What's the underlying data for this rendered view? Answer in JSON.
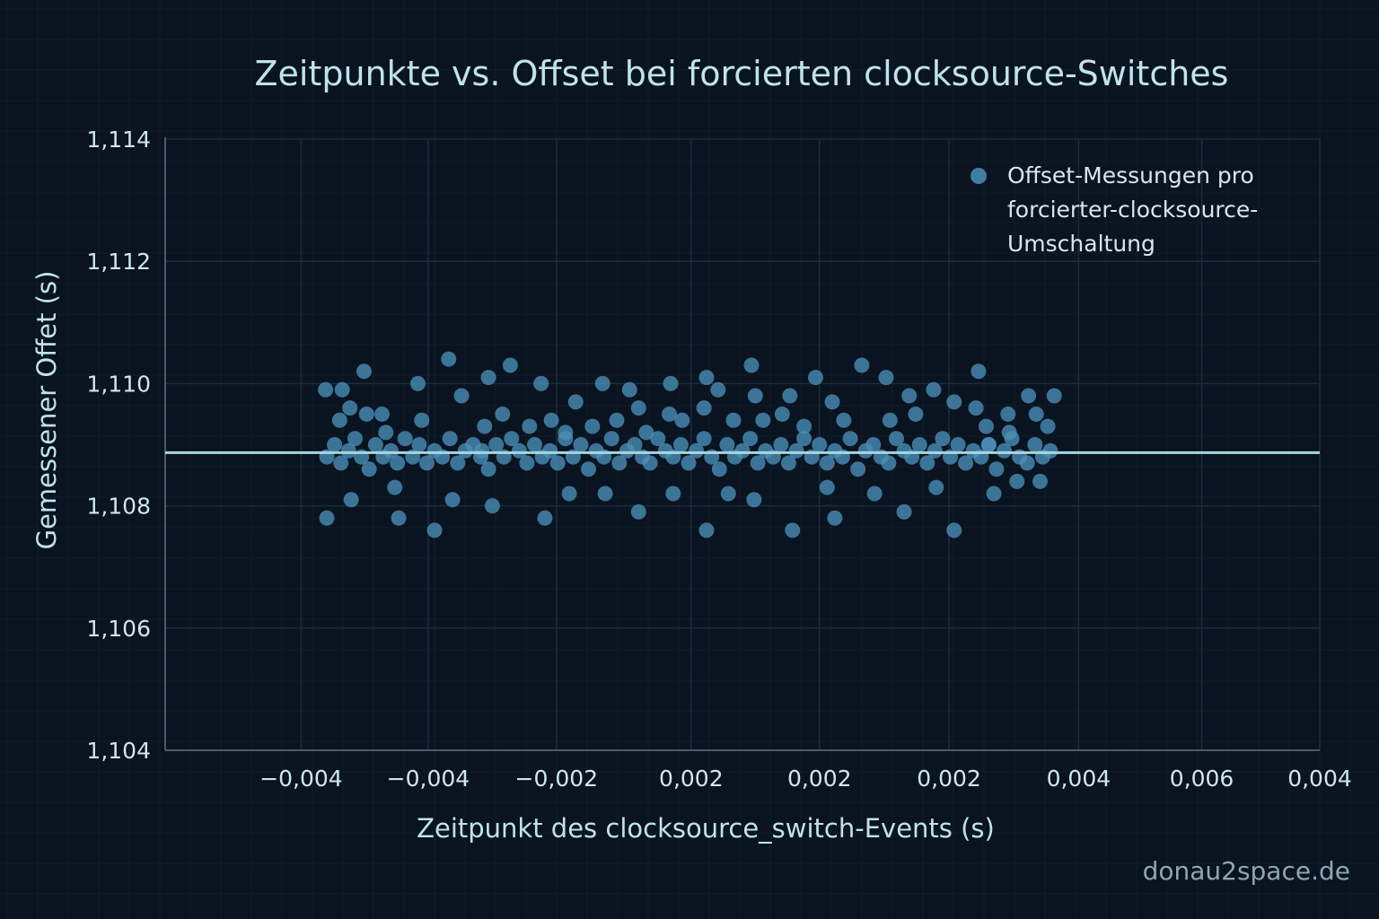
{
  "colors": {
    "background": "#0a1320",
    "point": "#4a90b8",
    "mean_line": "#a9d6df",
    "axis": "#4b5d6b",
    "grid": "#1a2a38"
  },
  "watermark": "donau2space.de",
  "chart_data": {
    "type": "scatter",
    "title": "Zeitpunkte vs. Offset bei forcierten clocksource-Switches",
    "xlabel": "Zeitpunkt des clocksource_switch-Events (s)",
    "ylabel": "Gemessener Offet (s)",
    "x_units_note": "x values given in tick-index units (tick 1..9)",
    "xlim": [
      0,
      9
    ],
    "ylim": [
      1.104,
      1.114
    ],
    "grid": true,
    "legend_position": "top-right",
    "xticks": [
      {
        "pos": 1.06,
        "label": "−0,004"
      },
      {
        "pos": 2.05,
        "label": "−0,004"
      },
      {
        "pos": 3.05,
        "label": "−0,002"
      },
      {
        "pos": 4.1,
        "label": "0,002"
      },
      {
        "pos": 5.1,
        "label": "0,002"
      },
      {
        "pos": 6.11,
        "label": "0,002"
      },
      {
        "pos": 7.12,
        "label": "0,004"
      },
      {
        "pos": 8.08,
        "label": "0,006"
      },
      {
        "pos": 9.0,
        "label": "0,004"
      }
    ],
    "yticks": [
      {
        "value": 1.114,
        "label": "1,114"
      },
      {
        "value": 1.112,
        "label": "1,112"
      },
      {
        "value": 1.11,
        "label": "1,110"
      },
      {
        "value": 1.108,
        "label": "1,108"
      },
      {
        "value": 1.106,
        "label": "1,106"
      },
      {
        "value": 1.104,
        "label": "1,104"
      }
    ],
    "series": [
      {
        "name": "Offset-Messungen pro forcierter-clocksource-Umschaltung",
        "legend_lines": [
          "Offset-Messungen pro",
          "forcierter-clocksource-",
          "Umschaltung"
        ],
        "points": [
          [
            1.25,
            1.1099
          ],
          [
            1.38,
            1.1099
          ],
          [
            1.55,
            1.1102
          ],
          [
            1.44,
            1.1096
          ],
          [
            1.57,
            1.1095
          ],
          [
            1.69,
            1.1095
          ],
          [
            1.36,
            1.1094
          ],
          [
            1.26,
            1.1078
          ],
          [
            1.45,
            1.1081
          ],
          [
            1.82,
            1.1078
          ],
          [
            2.1,
            1.1076
          ],
          [
            1.97,
            1.11
          ],
          [
            2.21,
            1.1104
          ],
          [
            2.31,
            1.1098
          ],
          [
            2.52,
            1.1101
          ],
          [
            2.69,
            1.1103
          ],
          [
            2.63,
            1.1095
          ],
          [
            2.49,
            1.1093
          ],
          [
            2.93,
            1.11
          ],
          [
            3.01,
            1.1094
          ],
          [
            2.96,
            1.1078
          ],
          [
            2.55,
            1.108
          ],
          [
            2.24,
            1.1081
          ],
          [
            1.79,
            1.1083
          ],
          [
            3.2,
            1.1097
          ],
          [
            3.41,
            1.11
          ],
          [
            3.62,
            1.1099
          ],
          [
            3.69,
            1.1096
          ],
          [
            3.93,
            1.1095
          ],
          [
            3.94,
            1.11
          ],
          [
            4.22,
            1.1101
          ],
          [
            4.31,
            1.1099
          ],
          [
            4.57,
            1.1103
          ],
          [
            4.6,
            1.1098
          ],
          [
            4.87,
            1.1098
          ],
          [
            4.81,
            1.1095
          ],
          [
            5.07,
            1.1101
          ],
          [
            5.2,
            1.1097
          ],
          [
            5.43,
            1.1103
          ],
          [
            5.62,
            1.1101
          ],
          [
            5.8,
            1.1098
          ],
          [
            5.99,
            1.1099
          ],
          [
            6.15,
            1.1097
          ],
          [
            6.34,
            1.1102
          ],
          [
            6.32,
            1.1096
          ],
          [
            6.57,
            1.1095
          ],
          [
            6.73,
            1.1098
          ],
          [
            6.93,
            1.1098
          ],
          [
            6.88,
            1.1093
          ],
          [
            6.46,
            1.1082
          ],
          [
            6.15,
            1.1076
          ],
          [
            5.76,
            1.1079
          ],
          [
            5.22,
            1.1078
          ],
          [
            4.89,
            1.1076
          ],
          [
            4.59,
            1.1081
          ],
          [
            4.22,
            1.1076
          ],
          [
            4.39,
            1.1082
          ],
          [
            3.96,
            1.1082
          ],
          [
            3.69,
            1.1079
          ],
          [
            3.43,
            1.1082
          ],
          [
            3.15,
            1.1082
          ],
          [
            6.01,
            1.1083
          ],
          [
            5.53,
            1.1082
          ],
          [
            5.16,
            1.1083
          ],
          [
            6.64,
            1.1084
          ],
          [
            6.82,
            1.1084
          ],
          [
            6.79,
            1.1095
          ],
          [
            6.58,
            1.1092
          ],
          [
            6.42,
            1.109
          ],
          [
            6.4,
            1.1093
          ],
          [
            5.85,
            1.1095
          ],
          [
            5.65,
            1.1094
          ],
          [
            5.29,
            1.1094
          ],
          [
            4.98,
            1.1093
          ],
          [
            4.66,
            1.1094
          ],
          [
            4.43,
            1.1094
          ],
          [
            4.2,
            1.1096
          ],
          [
            4.03,
            1.1094
          ],
          [
            3.75,
            1.1092
          ],
          [
            3.52,
            1.1094
          ],
          [
            3.33,
            1.1093
          ],
          [
            3.12,
            1.1092
          ],
          [
            2.84,
            1.1093
          ],
          [
            2.47,
            1.1089
          ],
          [
            2.0,
            1.1094
          ],
          [
            1.72,
            1.1092
          ],
          [
            1.26,
            1.1088
          ],
          [
            1.32,
            1.109
          ],
          [
            1.37,
            1.1087
          ],
          [
            1.43,
            1.1089
          ],
          [
            1.48,
            1.1091
          ],
          [
            1.53,
            1.1088
          ],
          [
            1.59,
            1.1086
          ],
          [
            1.64,
            1.109
          ],
          [
            1.7,
            1.1088
          ],
          [
            1.76,
            1.1089
          ],
          [
            1.81,
            1.1087
          ],
          [
            1.87,
            1.1091
          ],
          [
            1.93,
            1.1088
          ],
          [
            1.98,
            1.109
          ],
          [
            2.04,
            1.1087
          ],
          [
            2.1,
            1.1089
          ],
          [
            2.16,
            1.1088
          ],
          [
            2.22,
            1.1091
          ],
          [
            2.28,
            1.1087
          ],
          [
            2.34,
            1.1089
          ],
          [
            2.4,
            1.109
          ],
          [
            2.46,
            1.1088
          ],
          [
            2.52,
            1.1086
          ],
          [
            2.58,
            1.109
          ],
          [
            2.64,
            1.1088
          ],
          [
            2.7,
            1.1091
          ],
          [
            2.76,
            1.1089
          ],
          [
            2.82,
            1.1087
          ],
          [
            2.88,
            1.109
          ],
          [
            2.94,
            1.1088
          ],
          [
            3.0,
            1.1089
          ],
          [
            3.06,
            1.1087
          ],
          [
            3.12,
            1.1091
          ],
          [
            3.18,
            1.1088
          ],
          [
            3.24,
            1.109
          ],
          [
            3.3,
            1.1086
          ],
          [
            3.36,
            1.1089
          ],
          [
            3.42,
            1.1088
          ],
          [
            3.48,
            1.1091
          ],
          [
            3.54,
            1.1087
          ],
          [
            3.6,
            1.1089
          ],
          [
            3.66,
            1.109
          ],
          [
            3.72,
            1.1088
          ],
          [
            3.78,
            1.1087
          ],
          [
            3.84,
            1.1091
          ],
          [
            3.9,
            1.1089
          ],
          [
            3.96,
            1.1088
          ],
          [
            4.02,
            1.109
          ],
          [
            4.08,
            1.1087
          ],
          [
            4.14,
            1.1089
          ],
          [
            4.2,
            1.1091
          ],
          [
            4.26,
            1.1088
          ],
          [
            4.32,
            1.1086
          ],
          [
            4.38,
            1.109
          ],
          [
            4.44,
            1.1088
          ],
          [
            4.5,
            1.1089
          ],
          [
            4.56,
            1.1091
          ],
          [
            4.62,
            1.1087
          ],
          [
            4.68,
            1.1089
          ],
          [
            4.74,
            1.1088
          ],
          [
            4.8,
            1.109
          ],
          [
            4.86,
            1.1087
          ],
          [
            4.92,
            1.1089
          ],
          [
            4.98,
            1.1091
          ],
          [
            5.04,
            1.1088
          ],
          [
            5.1,
            1.109
          ],
          [
            5.16,
            1.1087
          ],
          [
            5.22,
            1.1089
          ],
          [
            5.28,
            1.1088
          ],
          [
            5.34,
            1.1091
          ],
          [
            5.4,
            1.1086
          ],
          [
            5.46,
            1.1089
          ],
          [
            5.52,
            1.109
          ],
          [
            5.58,
            1.1088
          ],
          [
            5.64,
            1.1087
          ],
          [
            5.7,
            1.1091
          ],
          [
            5.76,
            1.1089
          ],
          [
            5.82,
            1.1088
          ],
          [
            5.88,
            1.109
          ],
          [
            5.94,
            1.1087
          ],
          [
            6.0,
            1.1089
          ],
          [
            6.06,
            1.1091
          ],
          [
            6.12,
            1.1088
          ],
          [
            6.18,
            1.109
          ],
          [
            6.24,
            1.1087
          ],
          [
            6.3,
            1.1089
          ],
          [
            6.36,
            1.1088
          ],
          [
            6.42,
            1.109
          ],
          [
            6.48,
            1.1086
          ],
          [
            6.54,
            1.1089
          ],
          [
            6.6,
            1.1091
          ],
          [
            6.66,
            1.1088
          ],
          [
            6.72,
            1.1087
          ],
          [
            6.78,
            1.109
          ],
          [
            6.84,
            1.1088
          ],
          [
            6.9,
            1.1089
          ]
        ]
      }
    ],
    "reference_line": {
      "y": 1.10887,
      "x_range": [
        0,
        9
      ]
    }
  }
}
